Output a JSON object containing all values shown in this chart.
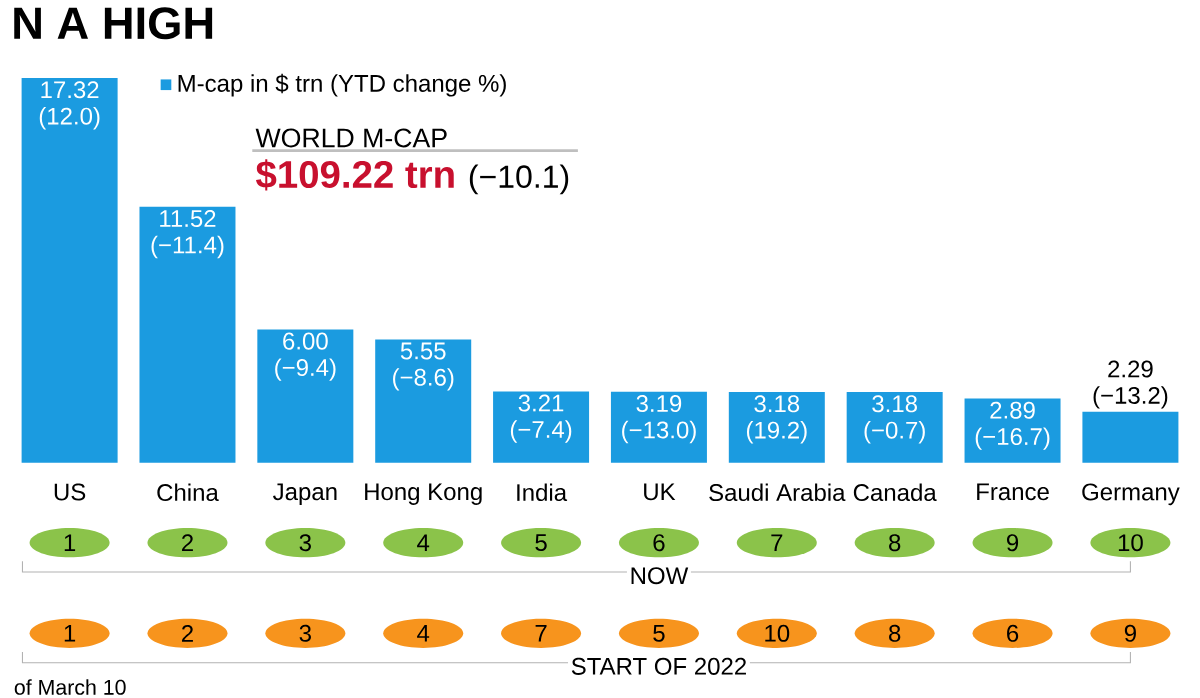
{
  "chart_data": {
    "type": "bar",
    "title": "N A HIGH",
    "categories": [
      "US",
      "China",
      "Japan",
      "Hong Kong",
      "India",
      "UK",
      "Saudi Arabia",
      "Canada",
      "France",
      "Germany"
    ],
    "series": [
      {
        "name": "M-cap in $ trn (YTD change %)",
        "color": "#1b9be0",
        "values": [
          17.32,
          11.52,
          6.0,
          5.55,
          3.21,
          3.19,
          3.18,
          3.18,
          2.89,
          2.29
        ],
        "value_labels": [
          "17.32 (12.0)",
          "11.52 (−11.4)",
          "6.00 (−9.4)",
          "5.55 (−8.6)",
          "3.21 (−7.4)",
          "3.19 (−13.0)",
          "3.18 (19.2)",
          "3.18 (−0.7)",
          "2.89 (−16.7)",
          "2.29 (−13.2)"
        ]
      }
    ],
    "legend": "top left",
    "annotations": [
      "WORLD M-CAP",
      "$109.22 trn",
      "(−10.1)",
      "NOW",
      "1",
      "2",
      "3",
      "4",
      "5",
      "6",
      "7",
      "8",
      "9",
      "10",
      "START OF 2022",
      "1",
      "2",
      "3",
      "4",
      "7",
      "5",
      "10",
      "8",
      "6",
      "9",
      "of March 10"
    ]
  }
}
